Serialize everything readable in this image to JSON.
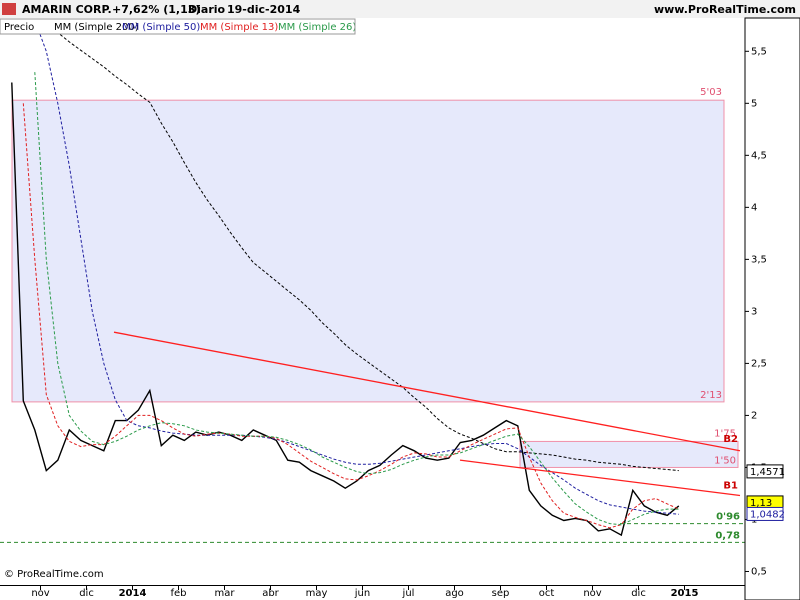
{
  "chart_data": {
    "type": "line",
    "title": "AMARIN CORP.",
    "change": "+7,62% (1,13)",
    "period": "Diario",
    "date": "19-dic-2014",
    "source": "www.ProRealTime.com",
    "copyright": "© ProRealTime.com",
    "categories": [
      null,
      null,
      null,
      "nov",
      null,
      null,
      null,
      "dic",
      null,
      null,
      null,
      "2014",
      null,
      null,
      null,
      "feb",
      null,
      null,
      null,
      "mar",
      null,
      null,
      null,
      "abr",
      null,
      null,
      null,
      "may",
      null,
      null,
      null,
      "jun",
      null,
      null,
      null,
      "jul",
      null,
      null,
      null,
      "ago",
      null,
      null,
      null,
      "sep",
      null,
      null,
      null,
      "oct",
      null,
      null,
      null,
      "nov",
      null,
      null,
      null,
      "dic",
      null,
      null,
      null,
      "2015",
      null,
      null,
      null,
      null
    ],
    "series": [
      {
        "name": "Precio",
        "color": "#000000",
        "dashed": false,
        "values": [
          5.2,
          2.14,
          1.86,
          1.47,
          1.57,
          1.86,
          1.76,
          1.71,
          1.66,
          1.95,
          1.95,
          2.05,
          2.24,
          1.71,
          1.81,
          1.76,
          1.84,
          1.81,
          1.84,
          1.81,
          1.76,
          1.86,
          1.81,
          1.76,
          1.57,
          1.55,
          1.47,
          1.42,
          1.37,
          1.3,
          1.37,
          1.47,
          1.52,
          1.62,
          1.71,
          1.66,
          1.59,
          1.57,
          1.59,
          1.74,
          1.76,
          1.81,
          1.88,
          1.95,
          1.9,
          1.28,
          1.13,
          1.04,
          0.99,
          1.01,
          0.99,
          0.89,
          0.91,
          0.85,
          1.28,
          1.13,
          1.07,
          1.04,
          1.13,
          null,
          null,
          null,
          null,
          null
        ]
      },
      {
        "name": "MM (Simple 200)",
        "color": "#000000",
        "dashed": true,
        "values": [
          null,
          null,
          5.89,
          5.76,
          5.68,
          5.59,
          5.51,
          5.43,
          5.35,
          5.26,
          5.18,
          5.09,
          5.01,
          4.81,
          4.63,
          4.43,
          4.24,
          4.07,
          3.92,
          3.76,
          3.61,
          3.47,
          3.38,
          3.29,
          3.2,
          3.11,
          3.01,
          2.89,
          2.79,
          2.68,
          2.59,
          2.51,
          2.43,
          2.35,
          2.27,
          2.17,
          2.08,
          1.97,
          1.88,
          1.82,
          1.78,
          1.73,
          1.68,
          1.65,
          1.65,
          1.64,
          1.63,
          1.62,
          1.6,
          1.58,
          1.57,
          1.55,
          1.54,
          1.53,
          1.51,
          1.5,
          1.49,
          1.48,
          1.47,
          null,
          null,
          null,
          null,
          null
        ]
      },
      {
        "name": "MM (Simple 50)",
        "color": "#2020a0",
        "dashed": true,
        "values": [
          null,
          null,
          5.8,
          5.5,
          5.0,
          4.4,
          3.7,
          3.0,
          2.5,
          2.15,
          1.95,
          1.9,
          1.88,
          1.85,
          1.83,
          1.82,
          1.81,
          1.81,
          1.81,
          1.81,
          1.81,
          1.8,
          1.79,
          1.77,
          1.74,
          1.7,
          1.66,
          1.62,
          1.58,
          1.55,
          1.53,
          1.53,
          1.54,
          1.56,
          1.58,
          1.6,
          1.62,
          1.64,
          1.66,
          1.68,
          1.7,
          1.72,
          1.73,
          1.73,
          1.68,
          1.6,
          1.52,
          1.45,
          1.38,
          1.3,
          1.24,
          1.18,
          1.14,
          1.12,
          1.1,
          1.08,
          1.07,
          1.06,
          1.05,
          null,
          null,
          null,
          null,
          null
        ]
      },
      {
        "name": "MM (Simple 13)",
        "color": "#e02020",
        "dashed": true,
        "values": [
          null,
          5.0,
          3.5,
          2.2,
          1.9,
          1.75,
          1.7,
          1.72,
          1.72,
          1.8,
          1.9,
          2.0,
          2.0,
          1.95,
          1.88,
          1.82,
          1.8,
          1.82,
          1.83,
          1.82,
          1.8,
          1.8,
          1.8,
          1.78,
          1.72,
          1.64,
          1.56,
          1.5,
          1.44,
          1.39,
          1.38,
          1.42,
          1.47,
          1.53,
          1.6,
          1.64,
          1.63,
          1.6,
          1.6,
          1.66,
          1.72,
          1.77,
          1.82,
          1.87,
          1.88,
          1.6,
          1.35,
          1.18,
          1.06,
          1.02,
          0.99,
          0.95,
          0.92,
          0.95,
          1.1,
          1.18,
          1.2,
          1.15,
          1.1,
          null,
          null,
          null,
          null,
          null
        ]
      },
      {
        "name": "MM (Simple 26)",
        "color": "#2a9a4a",
        "dashed": true,
        "values": [
          null,
          null,
          5.3,
          3.5,
          2.5,
          2.0,
          1.85,
          1.75,
          1.72,
          1.75,
          1.8,
          1.86,
          1.9,
          1.93,
          1.92,
          1.9,
          1.86,
          1.84,
          1.83,
          1.82,
          1.81,
          1.8,
          1.8,
          1.79,
          1.76,
          1.72,
          1.67,
          1.6,
          1.55,
          1.5,
          1.46,
          1.44,
          1.45,
          1.48,
          1.53,
          1.57,
          1.6,
          1.62,
          1.62,
          1.64,
          1.68,
          1.72,
          1.76,
          1.8,
          1.82,
          1.7,
          1.55,
          1.4,
          1.27,
          1.15,
          1.07,
          1.0,
          0.96,
          0.95,
          1.0,
          1.05,
          1.08,
          1.1,
          1.1,
          null,
          null,
          null,
          null,
          null
        ]
      }
    ],
    "zones": [
      {
        "to": {
          "value": 5.03,
          "label": "5'03"
        },
        "from": {
          "value": 2.13,
          "label": "2'13"
        }
      },
      {
        "to": {
          "value": 1.75,
          "label": "1'75"
        },
        "from": {
          "value": 1.5,
          "label": "1'50"
        }
      }
    ],
    "trendlines": [
      {
        "name": "B2",
        "color": "#ff2020",
        "values": [
          2.8,
          1.66
        ]
      },
      {
        "name": "B1",
        "color": "#ff2020",
        "values": [
          1.57,
          1.23
        ]
      }
    ],
    "levels": [
      {
        "value": 0.96,
        "label": "0'96",
        "color": "#2e8b2e"
      },
      {
        "value": 0.78,
        "label": "0,78",
        "color": "#2e8b2e"
      }
    ],
    "price_tags": [
      {
        "value": 1.4571,
        "label": "1,4571",
        "color": "#000000",
        "fill": "#ffffff"
      },
      {
        "value": 1.13,
        "label": "1,13",
        "color": "#000000",
        "fill": "#ffff00"
      },
      {
        "value": 1.0482,
        "label": "1,0482",
        "color": "#2020a0",
        "fill": "#ffffff"
      }
    ],
    "ylim": [
      0.37,
      5.82
    ],
    "yticks": [
      {
        "value": 0.5,
        "label": "0,5"
      },
      1,
      {
        "value": 1.5,
        "label": "1,5"
      },
      2,
      {
        "value": 2.5,
        "label": "2,5"
      },
      3,
      {
        "value": 3.5,
        "label": "3,5"
      },
      4,
      {
        "value": 4.5,
        "label": "4,5"
      },
      5,
      {
        "value": 5.5,
        "label": "5,5"
      }
    ],
    "grid": false
  }
}
